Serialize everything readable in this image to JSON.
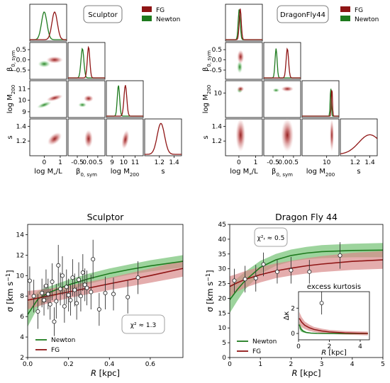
{
  "colors": {
    "newton": "#1e7a1e",
    "newton_band": "#7cc67c",
    "fg": "#8f1515",
    "fg_band": "#d98a8a",
    "point_face": "#ffffff",
    "point_edge": "#333333"
  },
  "chart_data": [
    {
      "type": "corner",
      "name": "Sculptor corner plot",
      "box_label": "Sculptor",
      "legend": [
        "FG",
        "Newton"
      ],
      "parameters": [
        "log M*/L",
        "β0,sym",
        "log M200",
        "s"
      ],
      "axis_labels": {
        "x": [
          "log M_*/L",
          "β_0,sym",
          "log M_200",
          "s"
        ],
        "y": [
          "β_0,sym",
          "log M_200",
          "s"
        ]
      },
      "ticks": {
        "logML": [
          "0",
          "1"
        ],
        "beta": [
          "-0.5",
          "0.0",
          "0.5"
        ],
        "logM200": [
          "9",
          "10",
          "11"
        ],
        "s": [
          "1.2",
          "1.4"
        ]
      },
      "ranges": {
        "logML": [
          -0.9,
          1.4
        ],
        "beta": [
          -0.95,
          0.85
        ],
        "logM200": [
          8.5,
          11.7
        ],
        "s": [
          1.0,
          1.5
        ]
      },
      "posteriors": {
        "Newton": {
          "logML": 0.0,
          "beta": -0.25,
          "logM200": 9.7
        },
        "FG": {
          "logML": 0.65,
          "beta": 0.05,
          "logM200": 10.15,
          "s": 1.22
        }
      }
    },
    {
      "type": "corner",
      "name": "Dragonfly 44 corner plot",
      "box_label": "DragonFly44",
      "legend": [
        "FG",
        "Newton"
      ],
      "parameters": [
        "log M*/L",
        "β0,sym",
        "log M200",
        "s"
      ],
      "axis_labels": {
        "x": [
          "log M_*/L",
          "β_0,sym",
          "log M_200",
          "s"
        ],
        "y": [
          "β_0,sym",
          "log M_200",
          "s"
        ]
      },
      "ticks": {
        "logML": [
          "0",
          "1"
        ],
        "beta": [
          "-0.5",
          "0.0",
          "0.5"
        ],
        "logM200": [
          "10"
        ],
        "s": [
          "1.2",
          "1.4"
        ]
      },
      "ranges": {
        "logML": [
          -0.8,
          1.4
        ],
        "beta": [
          -0.95,
          0.85
        ],
        "logM200": [
          9.0,
          11.7
        ],
        "s": [
          1.0,
          1.5
        ]
      },
      "posteriors": {
        "Newton": {
          "logML": 0.05,
          "beta": -0.35,
          "logM200": 11.1
        },
        "FG": {
          "logML": 0.1,
          "beta": 0.2,
          "logM200": 11.2,
          "s": 1.4
        }
      }
    },
    {
      "type": "line",
      "title": "Sculptor",
      "xlabel": "R [kpc]",
      "ylabel": "σ [km s⁻¹]",
      "xlim": [
        0,
        0.76
      ],
      "ylim": [
        2,
        15
      ],
      "xticks": [
        0.0,
        0.2,
        0.4,
        0.6
      ],
      "yticks": [
        2,
        4,
        6,
        8,
        10,
        12,
        14
      ],
      "annotation": "χ² ≈ 1.3",
      "legend": [
        "Newton",
        "FG"
      ],
      "series": [
        {
          "name": "Newton",
          "x": [
            0.0,
            0.05,
            0.1,
            0.2,
            0.3,
            0.4,
            0.5,
            0.6,
            0.76
          ],
          "values": [
            6.2,
            7.7,
            8.3,
            9.1,
            9.7,
            10.2,
            10.6,
            10.95,
            11.4
          ],
          "band_width": [
            1.2,
            0.8,
            0.6,
            0.5,
            0.5,
            0.5,
            0.5,
            0.55,
            0.6
          ]
        },
        {
          "name": "FG",
          "x": [
            0.0,
            0.1,
            0.2,
            0.3,
            0.4,
            0.5,
            0.6,
            0.76
          ],
          "values": [
            7.6,
            8.0,
            8.4,
            8.8,
            9.2,
            9.6,
            10.0,
            10.7
          ],
          "band_width": [
            0.9,
            0.7,
            0.6,
            0.6,
            0.6,
            0.65,
            0.7,
            0.8
          ]
        }
      ],
      "points": [
        {
          "x": 0.01,
          "y": 9.5,
          "e": 1.4
        },
        {
          "x": 0.03,
          "y": 8.0,
          "e": 1.6
        },
        {
          "x": 0.05,
          "y": 6.5,
          "e": 1.7
        },
        {
          "x": 0.07,
          "y": 8.3,
          "e": 1.4
        },
        {
          "x": 0.08,
          "y": 7.6,
          "e": 1.5
        },
        {
          "x": 0.09,
          "y": 9.0,
          "e": 1.6
        },
        {
          "x": 0.1,
          "y": 8.2,
          "e": 1.5
        },
        {
          "x": 0.11,
          "y": 7.2,
          "e": 1.5
        },
        {
          "x": 0.12,
          "y": 9.4,
          "e": 1.8
        },
        {
          "x": 0.13,
          "y": 5.5,
          "e": 1.4
        },
        {
          "x": 0.14,
          "y": 7.5,
          "e": 1.7
        },
        {
          "x": 0.15,
          "y": 11.0,
          "e": 2.0
        },
        {
          "x": 0.16,
          "y": 8.7,
          "e": 1.6
        },
        {
          "x": 0.17,
          "y": 10.0,
          "e": 1.9
        },
        {
          "x": 0.18,
          "y": 7.0,
          "e": 1.6
        },
        {
          "x": 0.19,
          "y": 8.9,
          "e": 1.7
        },
        {
          "x": 0.2,
          "y": 8.1,
          "e": 1.6
        },
        {
          "x": 0.21,
          "y": 7.6,
          "e": 1.5
        },
        {
          "x": 0.22,
          "y": 9.8,
          "e": 1.8
        },
        {
          "x": 0.23,
          "y": 8.6,
          "e": 1.6
        },
        {
          "x": 0.24,
          "y": 7.3,
          "e": 1.6
        },
        {
          "x": 0.25,
          "y": 9.6,
          "e": 1.7
        },
        {
          "x": 0.26,
          "y": 8.0,
          "e": 1.5
        },
        {
          "x": 0.27,
          "y": 10.3,
          "e": 1.8
        },
        {
          "x": 0.28,
          "y": 9.1,
          "e": 1.6
        },
        {
          "x": 0.29,
          "y": 8.8,
          "e": 1.7
        },
        {
          "x": 0.31,
          "y": 8.4,
          "e": 1.7
        },
        {
          "x": 0.32,
          "y": 11.6,
          "e": 1.9
        },
        {
          "x": 0.35,
          "y": 6.7,
          "e": 1.6
        },
        {
          "x": 0.38,
          "y": 8.3,
          "e": 1.6
        },
        {
          "x": 0.42,
          "y": 8.2,
          "e": 1.6
        },
        {
          "x": 0.49,
          "y": 7.9,
          "e": 1.6
        },
        {
          "x": 0.54,
          "y": 9.8,
          "e": 1.6
        }
      ]
    },
    {
      "type": "line",
      "title": "Dragon Fly 44",
      "xlabel": "R [kpc]",
      "ylabel": "σ [km s⁻¹]",
      "xlim": [
        0,
        5
      ],
      "ylim": [
        0,
        45
      ],
      "xticks": [
        0,
        1,
        2,
        3,
        4,
        5
      ],
      "yticks": [
        0,
        5,
        10,
        15,
        20,
        25,
        30,
        35,
        40,
        45
      ],
      "annotation": "χ²ᵣ ≈ 0.5",
      "legend": [
        "Newton",
        "FG"
      ],
      "series": [
        {
          "name": "Newton",
          "x": [
            0,
            0.25,
            0.5,
            1,
            1.5,
            2,
            2.5,
            3,
            4,
            5
          ],
          "values": [
            19.5,
            23.0,
            26.0,
            30.5,
            33.0,
            34.5,
            35.3,
            35.8,
            36.2,
            36.3
          ],
          "band_width": [
            4.5,
            3.8,
            3.0,
            2.2,
            2.0,
            2.0,
            2.1,
            2.2,
            2.3,
            2.4
          ]
        },
        {
          "name": "FG",
          "x": [
            0,
            0.25,
            0.5,
            1,
            1.5,
            2,
            2.5,
            3,
            4,
            5
          ],
          "values": [
            24.0,
            25.3,
            26.4,
            28.0,
            29.3,
            30.2,
            31.0,
            31.6,
            32.5,
            33.0
          ],
          "band_width": [
            3.5,
            3.0,
            2.8,
            2.6,
            2.5,
            2.5,
            2.6,
            2.7,
            2.9,
            3.0
          ]
        }
      ],
      "points": [
        {
          "x": 0.15,
          "y": 26.0,
          "e": 4.0
        },
        {
          "x": 0.5,
          "y": 26.5,
          "e": 4.5
        },
        {
          "x": 0.85,
          "y": 26.8,
          "e": 4.5
        },
        {
          "x": 1.1,
          "y": 31.5,
          "e": 4.0
        },
        {
          "x": 1.55,
          "y": 29.0,
          "e": 4.0
        },
        {
          "x": 2.0,
          "y": 29.5,
          "e": 4.5
        },
        {
          "x": 2.6,
          "y": 29.0,
          "e": 4.0
        },
        {
          "x": 3.6,
          "y": 34.5,
          "e": 4.5
        }
      ],
      "inset": {
        "type": "line",
        "title": "excess kurtosis",
        "xlabel": "R [kpc]",
        "ylabel": "Δκ",
        "xlim": [
          0,
          4.6
        ],
        "ylim": [
          -0.5,
          3.3
        ],
        "xticks": [
          0,
          2,
          4
        ],
        "yticks": [
          0,
          2
        ],
        "series": [
          {
            "name": "Newton",
            "x": [
              0.05,
              0.15,
              0.3,
              0.5,
              0.8,
              1.2,
              2,
              3,
              4.5
            ],
            "values": [
              0.7,
              0.35,
              0.18,
              0.08,
              0.03,
              0.01,
              0.0,
              0.0,
              0.0
            ],
            "band_width": [
              0.3,
              0.2,
              0.1,
              0.05,
              0.03,
              0.02,
              0.02,
              0.02,
              0.02
            ]
          },
          {
            "name": "FG",
            "x": [
              0.05,
              0.2,
              0.4,
              0.7,
              1.0,
              1.5,
              2,
              3,
              4.5
            ],
            "values": [
              1.2,
              0.9,
              0.65,
              0.45,
              0.32,
              0.2,
              0.12,
              0.05,
              0.0
            ],
            "band_width": [
              0.5,
              0.4,
              0.3,
              0.25,
              0.2,
              0.18,
              0.16,
              0.15,
              0.15
            ]
          }
        ],
        "points": [
          {
            "x": 1.5,
            "y": 2.4,
            "e": 0.9
          }
        ]
      }
    }
  ]
}
